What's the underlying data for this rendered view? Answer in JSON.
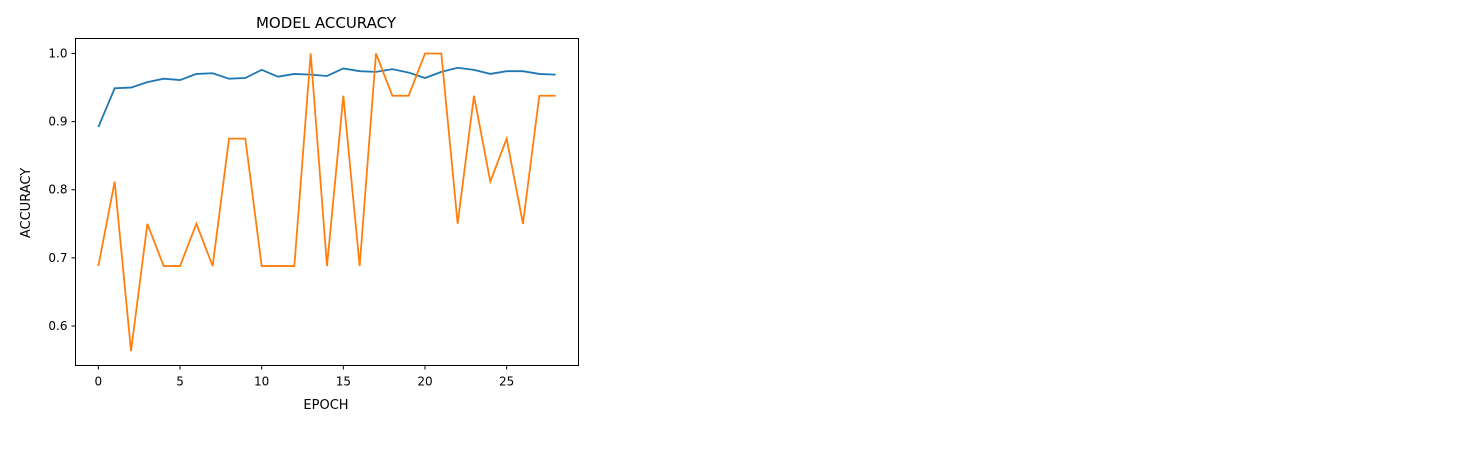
{
  "chart_data": {
    "type": "line",
    "title": "MODEL ACCURACY",
    "xlabel": "EPOCH",
    "ylabel": "ACCURACY",
    "xlim": [
      -1.4,
      29.4
    ],
    "ylim": [
      0.542,
      1.022
    ],
    "xticks": [
      0,
      5,
      10,
      15,
      20,
      25
    ],
    "yticks": [
      0.6,
      0.7,
      0.8,
      0.9,
      1.0
    ],
    "ytick_labels": [
      "0.6",
      "0.7",
      "0.8",
      "0.9",
      "1.0"
    ],
    "grid": false,
    "series": [
      {
        "color": "#1f77b4",
        "x": [
          0,
          1,
          2,
          3,
          4,
          5,
          6,
          7,
          8,
          9,
          10,
          11,
          12,
          13,
          14,
          15,
          16,
          17,
          18,
          19,
          20,
          21,
          22,
          23,
          24,
          25,
          26,
          27,
          28
        ],
        "values": [
          0.892,
          0.949,
          0.95,
          0.958,
          0.963,
          0.961,
          0.97,
          0.971,
          0.963,
          0.964,
          0.976,
          0.966,
          0.97,
          0.969,
          0.967,
          0.978,
          0.974,
          0.973,
          0.977,
          0.972,
          0.964,
          0.973,
          0.979,
          0.976,
          0.97,
          0.974,
          0.974,
          0.97,
          0.969
        ]
      },
      {
        "color": "#ff7f0e",
        "x": [
          0,
          1,
          2,
          3,
          4,
          5,
          6,
          7,
          8,
          9,
          10,
          11,
          12,
          13,
          14,
          15,
          16,
          17,
          18,
          19,
          20,
          21,
          22,
          23,
          24,
          25,
          26,
          27,
          28
        ],
        "values": [
          0.688,
          0.812,
          0.563,
          0.75,
          0.688,
          0.688,
          0.75,
          0.688,
          0.875,
          0.875,
          0.688,
          0.688,
          0.688,
          1.0,
          0.688,
          0.938,
          0.688,
          1.0,
          0.938,
          0.938,
          1.0,
          1.0,
          0.75,
          0.938,
          0.812,
          0.875,
          0.75,
          0.938,
          0.938
        ]
      }
    ]
  }
}
